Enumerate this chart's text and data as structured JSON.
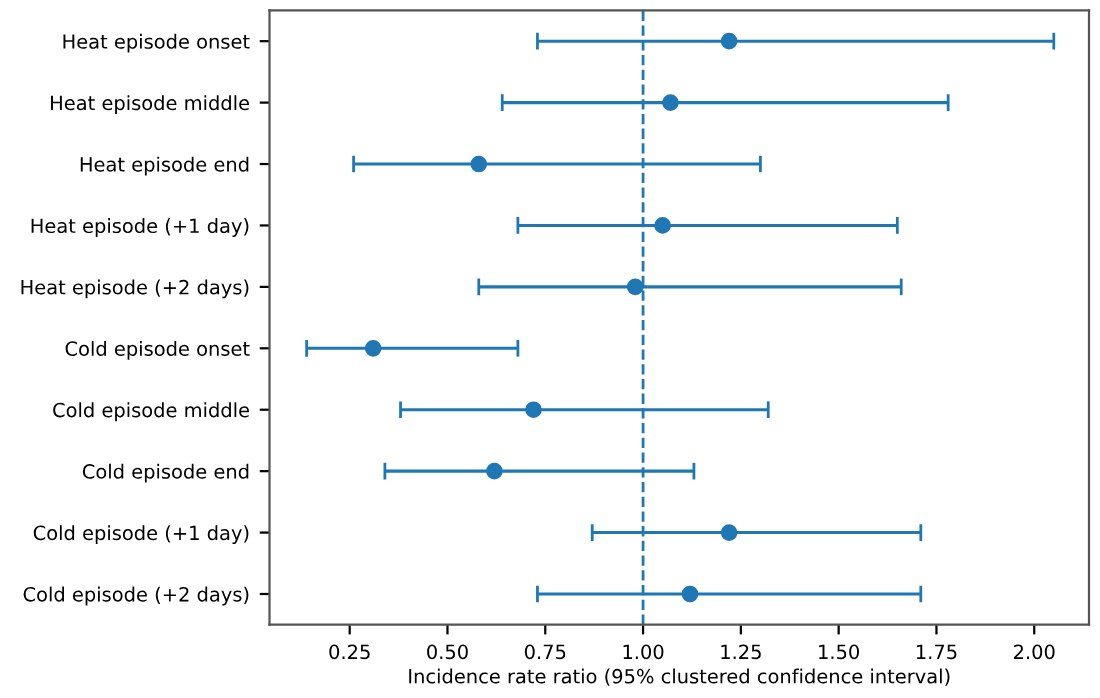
{
  "chart_data": {
    "type": "scatter",
    "orientation": "horizontal",
    "xlabel": "Incidence rate ratio (95% clustered confidence interval)",
    "categories": [
      "Heat episode onset",
      "Heat episode middle",
      "Heat episode end",
      "Heat episode (+1 day)",
      "Heat episode (+2 days)",
      "Cold episode onset",
      "Cold episode middle",
      "Cold episode end",
      "Cold episode (+1 day)",
      "Cold episode (+2 days)"
    ],
    "values": [
      1.22,
      1.07,
      0.58,
      1.05,
      0.98,
      0.31,
      0.72,
      0.62,
      1.22,
      1.12
    ],
    "errors": [
      [
        0.73,
        2.05
      ],
      [
        0.64,
        1.78
      ],
      [
        0.26,
        1.3
      ],
      [
        0.68,
        1.65
      ],
      [
        0.58,
        1.66
      ],
      [
        0.14,
        0.68
      ],
      [
        0.38,
        1.32
      ],
      [
        0.34,
        1.13
      ],
      [
        0.87,
        1.71
      ],
      [
        0.73,
        1.71
      ]
    ],
    "color": "#1f77b4",
    "marker": "circle",
    "grid": false,
    "xlim": [
      0.045,
      2.14
    ],
    "xticks": [
      {
        "value": 0.25,
        "label": "0.25"
      },
      {
        "value": 0.5,
        "label": "0.50"
      },
      {
        "value": 0.75,
        "label": "0.75"
      },
      {
        "value": 1.0,
        "label": "1.00"
      },
      {
        "value": 1.25,
        "label": "1.25"
      },
      {
        "value": 1.5,
        "label": "1.50"
      },
      {
        "value": 1.75,
        "label": "1.75"
      },
      {
        "value": 2.0,
        "label": "2.00"
      }
    ],
    "ref_lines": [
      {
        "axis": "x",
        "value": 1.0,
        "color": "#1f77b4",
        "line_style": "dashed"
      }
    ]
  }
}
